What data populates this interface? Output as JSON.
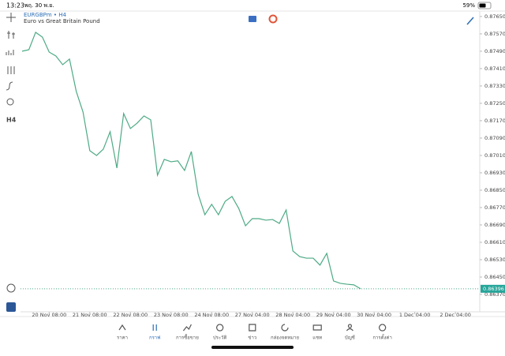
{
  "status_bar": {
    "time": "13:23",
    "date": "พฤ. 30 พ.ย.",
    "battery": "59%"
  },
  "toolbar": {
    "timeframe": "H4"
  },
  "chart_data": {
    "type": "line",
    "title": "EURGBPm • H4",
    "subtitle": "Euro vs Great Britain Pound",
    "color": "#4daa85",
    "categories": [
      null,
      null,
      null,
      null,
      "20 Nov 08:00",
      null,
      null,
      null,
      null,
      null,
      "21 Nov 08:00",
      null,
      null,
      null,
      null,
      null,
      "22 Nov 08:00",
      null,
      null,
      null,
      null,
      null,
      "23 Nov 08:00",
      null,
      null,
      null,
      null,
      null,
      "24 Nov 08:00",
      null,
      null,
      null,
      null,
      null,
      "27 Nov 04:00",
      null,
      null,
      null,
      null,
      null,
      "28 Nov 04:00",
      null,
      null,
      null,
      null,
      null,
      "29 Nov 04:00",
      null,
      null,
      null,
      null,
      null,
      "30 Nov 04:00",
      null,
      null,
      null,
      null,
      null,
      "1 Dec 04:00",
      null,
      null,
      null,
      null,
      null,
      "2 Dec 04:00"
    ],
    "values": [
      0.8749,
      0.87497,
      0.87577,
      0.87555,
      0.87486,
      0.87468,
      0.87428,
      0.87454,
      0.87305,
      0.8721,
      0.87032,
      0.8701,
      0.87039,
      0.87119,
      0.86952,
      0.87203,
      0.87134,
      0.87159,
      0.87192,
      0.87174,
      0.86919,
      0.86992,
      0.86981,
      0.86985,
      0.86941,
      0.87028,
      0.86832,
      0.86737,
      0.86785,
      0.86737,
      0.86799,
      0.86821,
      0.86766,
      0.86686,
      0.86719,
      0.86719,
      0.86712,
      0.86715,
      0.86697,
      0.86759,
      0.8657,
      0.86544,
      0.86537,
      0.86537,
      0.86505,
      0.86559,
      0.86432,
      0.86421,
      0.86417,
      0.86414,
      0.86396,
      null,
      null,
      null,
      null,
      null,
      null,
      null,
      null,
      null,
      null,
      null,
      null,
      null,
      null
    ],
    "ylim": [
      0.8629,
      0.87675
    ],
    "yticks": [
      {
        "value": 0.8765,
        "label": "0.87650"
      },
      {
        "value": 0.8757,
        "label": "0.87570"
      },
      {
        "value": 0.8749,
        "label": "0.87490"
      },
      {
        "value": 0.8741,
        "label": "0.87410"
      },
      {
        "value": 0.8733,
        "label": "0.87330"
      },
      {
        "value": 0.8725,
        "label": "0.87250"
      },
      {
        "value": 0.8717,
        "label": "0.87170"
      },
      {
        "value": 0.8709,
        "label": "0.87090"
      },
      {
        "value": 0.8701,
        "label": "0.87010"
      },
      {
        "value": 0.8693,
        "label": "0.86930"
      },
      {
        "value": 0.8685,
        "label": "0.86850"
      },
      {
        "value": 0.8677,
        "label": "0.86770"
      },
      {
        "value": 0.8669,
        "label": "0.86690"
      },
      {
        "value": 0.8661,
        "label": "0.86610"
      },
      {
        "value": 0.8653,
        "label": "0.86530"
      },
      {
        "value": 0.8645,
        "label": "0.86450"
      },
      {
        "value": 0.8637,
        "label": "0.86370"
      }
    ],
    "current_price": 0.86396
  },
  "tabs": [
    "ราคา",
    "กราฟ",
    "การซื้อขาย",
    "ประวัติ",
    "ข่าว",
    "กล่องจดหมาย",
    "แชท",
    "บัญชี",
    "การตั้งค่า"
  ],
  "active_tab": 1
}
